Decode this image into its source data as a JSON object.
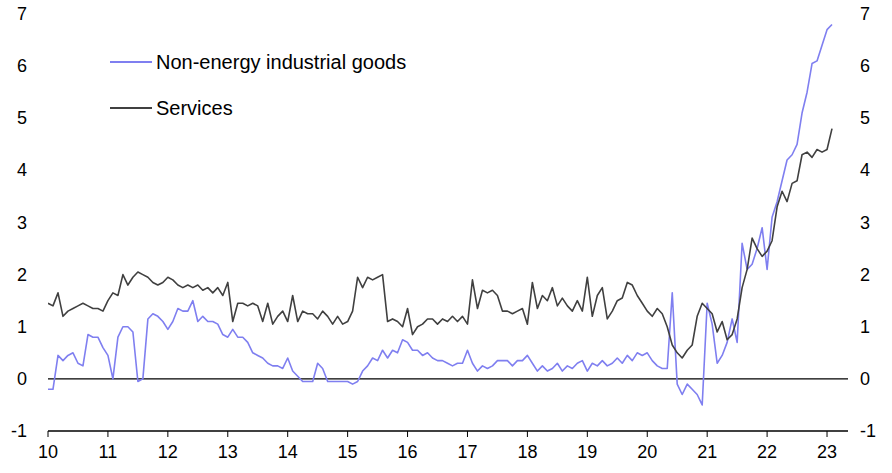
{
  "chart_data": {
    "type": "line",
    "x": [
      2010,
      2010.083,
      2010.167,
      2010.25,
      2010.333,
      2010.417,
      2010.5,
      2010.583,
      2010.667,
      2010.75,
      2010.833,
      2010.917,
      2011,
      2011.083,
      2011.167,
      2011.25,
      2011.333,
      2011.417,
      2011.5,
      2011.583,
      2011.667,
      2011.75,
      2011.833,
      2011.917,
      2012,
      2012.083,
      2012.167,
      2012.25,
      2012.333,
      2012.417,
      2012.5,
      2012.583,
      2012.667,
      2012.75,
      2012.833,
      2012.917,
      2013,
      2013.083,
      2013.167,
      2013.25,
      2013.333,
      2013.417,
      2013.5,
      2013.583,
      2013.667,
      2013.75,
      2013.833,
      2013.917,
      2014,
      2014.083,
      2014.167,
      2014.25,
      2014.333,
      2014.417,
      2014.5,
      2014.583,
      2014.667,
      2014.75,
      2014.833,
      2014.917,
      2015,
      2015.083,
      2015.167,
      2015.25,
      2015.333,
      2015.417,
      2015.5,
      2015.583,
      2015.667,
      2015.75,
      2015.833,
      2015.917,
      2016,
      2016.083,
      2016.167,
      2016.25,
      2016.333,
      2016.417,
      2016.5,
      2016.583,
      2016.667,
      2016.75,
      2016.833,
      2016.917,
      2017,
      2017.083,
      2017.167,
      2017.25,
      2017.333,
      2017.417,
      2017.5,
      2017.583,
      2017.667,
      2017.75,
      2017.833,
      2017.917,
      2018,
      2018.083,
      2018.167,
      2018.25,
      2018.333,
      2018.417,
      2018.5,
      2018.583,
      2018.667,
      2018.75,
      2018.833,
      2018.917,
      2019,
      2019.083,
      2019.167,
      2019.25,
      2019.333,
      2019.417,
      2019.5,
      2019.583,
      2019.667,
      2019.75,
      2019.833,
      2019.917,
      2020,
      2020.083,
      2020.167,
      2020.25,
      2020.333,
      2020.417,
      2020.5,
      2020.583,
      2020.667,
      2020.75,
      2020.833,
      2020.917,
      2021,
      2021.083,
      2021.167,
      2021.25,
      2021.333,
      2021.417,
      2021.5,
      2021.583,
      2021.667,
      2021.75,
      2021.833,
      2021.917,
      2022,
      2022.083,
      2022.167,
      2022.25,
      2022.333,
      2022.417,
      2022.5,
      2022.583,
      2022.667,
      2022.75,
      2022.833,
      2022.917,
      2023,
      2023.083
    ],
    "series": [
      {
        "name": "Non-energy industrial goods",
        "color": "#7f7ff0",
        "values": [
          -0.2,
          -0.2,
          0.45,
          0.35,
          0.45,
          0.5,
          0.3,
          0.25,
          0.85,
          0.8,
          0.8,
          0.6,
          0.45,
          0.0,
          0.8,
          1.0,
          1.0,
          0.9,
          -0.05,
          0.0,
          1.15,
          1.25,
          1.2,
          1.1,
          0.95,
          1.1,
          1.35,
          1.3,
          1.3,
          1.5,
          1.1,
          1.2,
          1.1,
          1.1,
          1.05,
          0.85,
          0.8,
          0.95,
          0.8,
          0.8,
          0.7,
          0.5,
          0.45,
          0.4,
          0.3,
          0.25,
          0.25,
          0.2,
          0.4,
          0.15,
          0.05,
          -0.05,
          -0.05,
          -0.05,
          0.3,
          0.2,
          -0.05,
          -0.05,
          -0.05,
          -0.05,
          -0.05,
          -0.1,
          -0.05,
          0.15,
          0.25,
          0.4,
          0.35,
          0.55,
          0.4,
          0.55,
          0.5,
          0.75,
          0.7,
          0.55,
          0.55,
          0.45,
          0.5,
          0.4,
          0.35,
          0.35,
          0.3,
          0.25,
          0.3,
          0.3,
          0.55,
          0.3,
          0.15,
          0.25,
          0.2,
          0.25,
          0.35,
          0.35,
          0.35,
          0.25,
          0.35,
          0.35,
          0.45,
          0.3,
          0.15,
          0.25,
          0.15,
          0.2,
          0.3,
          0.15,
          0.25,
          0.2,
          0.3,
          0.35,
          0.15,
          0.3,
          0.25,
          0.35,
          0.25,
          0.3,
          0.4,
          0.3,
          0.45,
          0.35,
          0.5,
          0.45,
          0.5,
          0.35,
          0.25,
          0.2,
          0.2,
          1.65,
          -0.1,
          -0.3,
          -0.1,
          -0.2,
          -0.3,
          -0.5,
          1.45,
          1.05,
          0.3,
          0.45,
          0.7,
          1.15,
          0.7,
          2.6,
          2.1,
          2.2,
          2.5,
          2.9,
          2.1,
          3.1,
          3.4,
          3.8,
          4.2,
          4.3,
          4.5,
          5.1,
          5.5,
          6.05,
          6.1,
          6.4,
          6.7,
          6.8
        ]
      },
      {
        "name": "Services",
        "color": "#404040",
        "values": [
          1.45,
          1.4,
          1.65,
          1.2,
          1.3,
          1.35,
          1.4,
          1.45,
          1.4,
          1.35,
          1.35,
          1.3,
          1.5,
          1.65,
          1.6,
          2.0,
          1.8,
          1.95,
          2.05,
          2.0,
          1.95,
          1.85,
          1.8,
          1.85,
          1.95,
          1.9,
          1.8,
          1.75,
          1.8,
          1.75,
          1.8,
          1.7,
          1.75,
          1.65,
          1.75,
          1.6,
          1.85,
          1.1,
          1.45,
          1.45,
          1.4,
          1.45,
          1.4,
          1.1,
          1.45,
          1.05,
          1.2,
          1.3,
          1.1,
          1.6,
          1.1,
          1.3,
          1.25,
          1.25,
          1.15,
          1.3,
          1.2,
          1.05,
          1.2,
          1.05,
          1.1,
          1.3,
          1.95,
          1.75,
          1.95,
          1.9,
          1.95,
          2.0,
          1.1,
          1.15,
          1.1,
          1.0,
          1.35,
          0.85,
          1.0,
          1.05,
          1.15,
          1.15,
          1.05,
          1.15,
          1.1,
          1.2,
          1.1,
          1.2,
          1.05,
          1.9,
          1.35,
          1.7,
          1.65,
          1.7,
          1.6,
          1.3,
          1.3,
          1.25,
          1.3,
          1.35,
          1.05,
          1.85,
          1.35,
          1.6,
          1.5,
          1.75,
          1.4,
          1.55,
          1.4,
          1.3,
          1.5,
          1.3,
          1.95,
          1.2,
          1.6,
          1.75,
          1.15,
          1.3,
          1.5,
          1.55,
          1.85,
          1.8,
          1.6,
          1.45,
          1.3,
          1.2,
          1.35,
          1.25,
          1.0,
          0.65,
          0.5,
          0.4,
          0.55,
          0.65,
          1.2,
          1.45,
          1.35,
          1.25,
          0.9,
          1.1,
          0.75,
          0.85,
          1.15,
          1.75,
          2.1,
          2.7,
          2.5,
          2.35,
          2.45,
          2.65,
          3.3,
          3.6,
          3.4,
          3.75,
          3.8,
          4.3,
          4.35,
          4.25,
          4.4,
          4.35,
          4.4,
          4.8
        ]
      }
    ],
    "xlim": [
      2010,
      2023.35
    ],
    "xticks": [
      {
        "value": 2010,
        "label": "10"
      },
      {
        "value": 2011,
        "label": "11"
      },
      {
        "value": 2012,
        "label": "12"
      },
      {
        "value": 2013,
        "label": "13"
      },
      {
        "value": 2014,
        "label": "14"
      },
      {
        "value": 2015,
        "label": "15"
      },
      {
        "value": 2016,
        "label": "16"
      },
      {
        "value": 2017,
        "label": "17"
      },
      {
        "value": 2018,
        "label": "18"
      },
      {
        "value": 2019,
        "label": "19"
      },
      {
        "value": 2020,
        "label": "20"
      },
      {
        "value": 2021,
        "label": "21"
      },
      {
        "value": 2022,
        "label": "22"
      },
      {
        "value": 2023,
        "label": "23"
      }
    ],
    "ylim": [
      -1,
      7
    ],
    "yticks": [
      -1,
      0,
      1,
      2,
      3,
      4,
      5,
      6,
      7
    ],
    "y2lim": [
      -1,
      7
    ],
    "y2ticks": [
      -1,
      0,
      1,
      2,
      3,
      4,
      5,
      6,
      7
    ],
    "grid": false,
    "legend": "upper left"
  }
}
